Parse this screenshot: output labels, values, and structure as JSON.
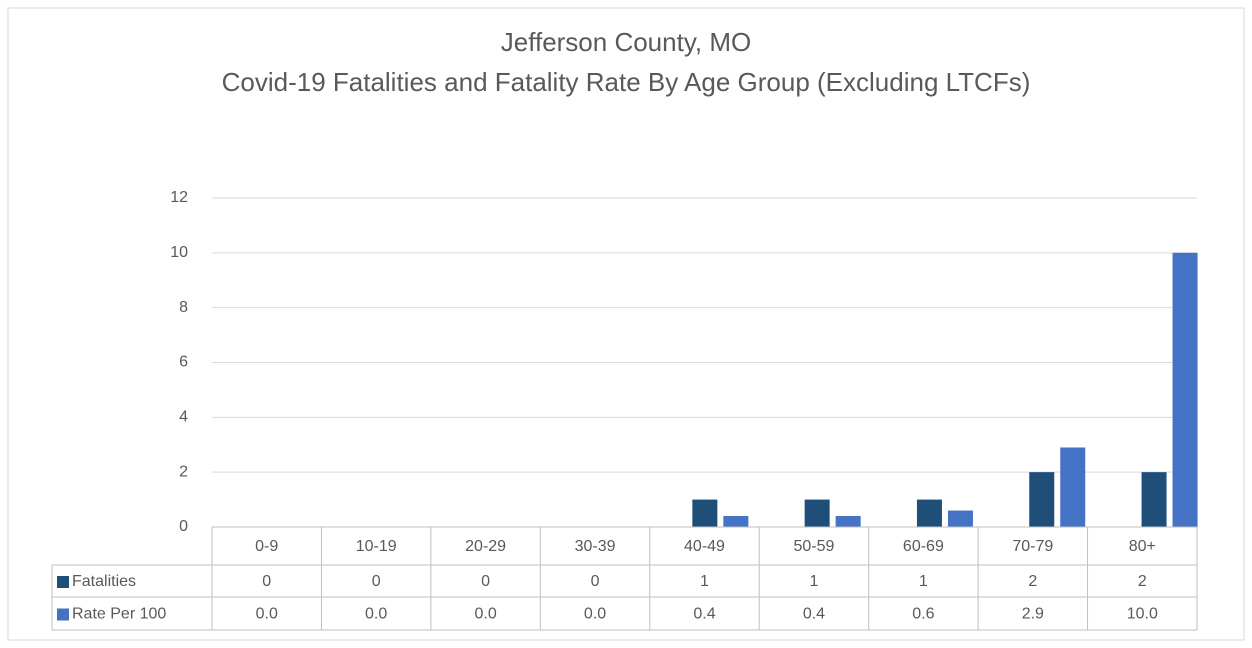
{
  "chart_data": {
    "type": "bar",
    "title": "Jefferson County, MO",
    "subtitle": "Covid-19 Fatalities and Fatality Rate By Age Group (Excluding LTCFs)",
    "categories": [
      "0-9",
      "10-19",
      "20-29",
      "30-39",
      "40-49",
      "50-59",
      "60-69",
      "70-79",
      "80+"
    ],
    "series": [
      {
        "name": "Fatalities",
        "color": "#1f4e79",
        "values": [
          0,
          0,
          0,
          0,
          1,
          1,
          1,
          2,
          2
        ]
      },
      {
        "name": "Rate Per 100",
        "color": "#4472c4",
        "values": [
          0,
          0,
          0,
          0,
          0.4,
          0.4,
          0.6,
          2.9,
          10
        ],
        "value_labels": [
          "0.0",
          "0.0",
          "0.0",
          "0.0",
          "0.4",
          "0.4",
          "0.6",
          "2.9",
          "10.0"
        ]
      }
    ],
    "ylim": [
      0,
      12
    ],
    "yticks": [
      0,
      2,
      4,
      6,
      8,
      10,
      12
    ],
    "grid": true,
    "legend": "data-table"
  }
}
